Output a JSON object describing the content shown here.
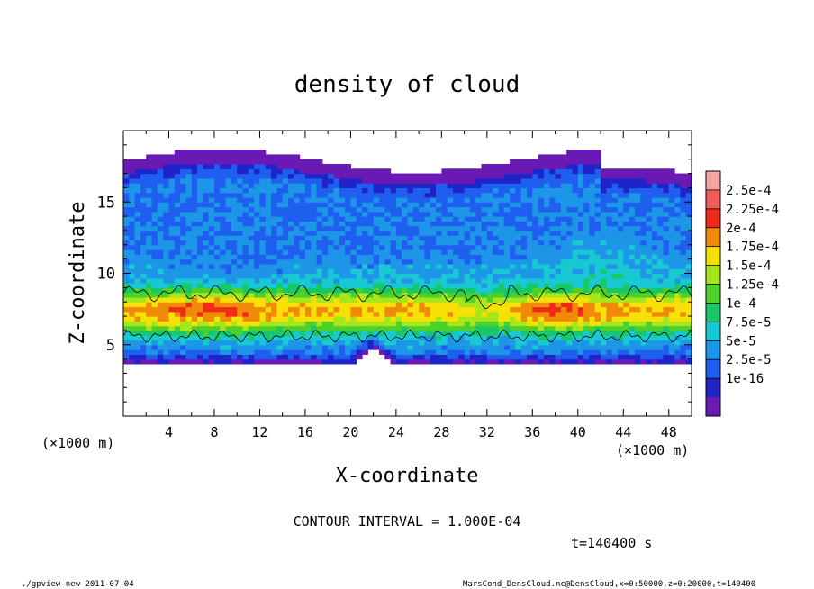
{
  "chart_data": {
    "type": "heatmap",
    "title": "density of cloud",
    "xlabel": "X-coordinate",
    "ylabel": "Z-coordinate",
    "x_unit_left": "(×1000 m)",
    "x_unit_right": "(×1000 m)",
    "xlim": [
      0,
      50
    ],
    "ylim": [
      0,
      20
    ],
    "x_ticks": [
      "4",
      "8",
      "12",
      "16",
      "20",
      "24",
      "28",
      "32",
      "36",
      "40",
      "44",
      "48"
    ],
    "x_tick_values": [
      4,
      8,
      12,
      16,
      20,
      24,
      28,
      32,
      36,
      40,
      44,
      48
    ],
    "y_ticks": [
      "5",
      "10",
      "15"
    ],
    "y_tick_values": [
      5,
      10,
      15
    ],
    "colorbar": {
      "labels": [
        "2.5e-4",
        "2.25e-4",
        "2e-4",
        "1.75e-4",
        "1.5e-4",
        "1.25e-4",
        "1e-4",
        "7.5e-5",
        "5e-5",
        "2.5e-5",
        "1e-16"
      ],
      "colors": [
        "#f6a5a5",
        "#f35a5a",
        "#ef2a19",
        "#f08a08",
        "#f6e006",
        "#a6e61a",
        "#4dd02a",
        "#17c86a",
        "#18c8d2",
        "#1e96e8",
        "#1f5ff0",
        "#1e24c8",
        "#6a1ab4"
      ]
    },
    "field": {
      "description_rows": [
        {
          "z": 18.0,
          "level": 0
        },
        {
          "z": 16.5,
          "level": 1
        },
        {
          "z": 14.5,
          "level": 2
        },
        {
          "z": 12.0,
          "level": 3
        },
        {
          "z": 10.0,
          "level": 4
        },
        {
          "z": 8.5,
          "level": 6
        },
        {
          "z": 7.3,
          "level": 8
        },
        {
          "z": 6.0,
          "level": 6
        },
        {
          "z": 5.0,
          "level": 4
        },
        {
          "z": 4.2,
          "level": 1
        }
      ]
    },
    "contour_interval_text": "CONTOUR INTERVAL = 1.000E-04",
    "time_text": "t=140400 s"
  },
  "footer": {
    "left": "./gpview-new  2011-07-04",
    "right": "MarsCond_DensCloud.nc@DensCloud,x=0:50000,z=0:20000,t=140400"
  }
}
